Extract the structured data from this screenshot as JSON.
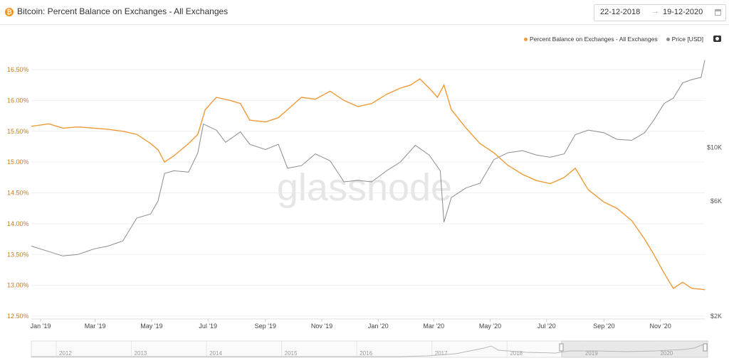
{
  "header": {
    "title": "Bitcoin: Percent Balance on Exchanges - All Exchanges",
    "date_from": "22-12-2018",
    "date_to": "19-12-2020",
    "arrow": "→"
  },
  "legend": {
    "series1": "Percent Balance on Exchanges - All Exchanges",
    "series2": "Price [USD]"
  },
  "watermark": "glassnode",
  "colors": {
    "balance": "#f09a37",
    "price": "#8c8c8c",
    "grid": "#efefef"
  },
  "chart_data": {
    "type": "line",
    "x_axis": {
      "ticks": [
        "Jan '19",
        "Mar '19",
        "May '19",
        "Jul '19",
        "Sep '19",
        "Nov '19",
        "Jan '20",
        "Mar '20",
        "May '20",
        "Jul '20",
        "Sep '20",
        "Nov '20"
      ],
      "range": [
        "2018-12-22",
        "2020-12-19"
      ]
    },
    "y_left": {
      "ticks": [
        "12.50%",
        "13.00%",
        "13.50%",
        "14.00%",
        "14.50%",
        "15.00%",
        "15.50%",
        "16.00%",
        "16.50%"
      ],
      "range": [
        12.5,
        16.5
      ]
    },
    "y_right": {
      "ticks": [
        "$2K",
        "$6K",
        "$10K"
      ],
      "scale": "log",
      "range": [
        2000,
        21000
      ]
    },
    "series": [
      {
        "name": "Percent Balance on Exchanges - All Exchanges",
        "axis": "left",
        "points": [
          [
            "2018-12-22",
            15.58
          ],
          [
            "2019-01-10",
            15.62
          ],
          [
            "2019-01-25",
            15.55
          ],
          [
            "2019-02-10",
            15.57
          ],
          [
            "2019-02-28",
            15.55
          ],
          [
            "2019-03-15",
            15.53
          ],
          [
            "2019-03-31",
            15.5
          ],
          [
            "2019-04-15",
            15.45
          ],
          [
            "2019-04-30",
            15.3
          ],
          [
            "2019-05-08",
            15.2
          ],
          [
            "2019-05-15",
            15.0
          ],
          [
            "2019-05-25",
            15.1
          ],
          [
            "2019-06-10",
            15.3
          ],
          [
            "2019-06-20",
            15.45
          ],
          [
            "2019-06-28",
            15.85
          ],
          [
            "2019-07-10",
            16.05
          ],
          [
            "2019-07-25",
            16.0
          ],
          [
            "2019-08-05",
            15.95
          ],
          [
            "2019-08-15",
            15.68
          ],
          [
            "2019-09-01",
            15.65
          ],
          [
            "2019-09-15",
            15.72
          ],
          [
            "2019-09-25",
            15.85
          ],
          [
            "2019-10-10",
            16.05
          ],
          [
            "2019-10-25",
            16.02
          ],
          [
            "2019-11-10",
            16.15
          ],
          [
            "2019-11-25",
            16.0
          ],
          [
            "2019-12-10",
            15.9
          ],
          [
            "2019-12-25",
            15.95
          ],
          [
            "2020-01-10",
            16.1
          ],
          [
            "2020-01-25",
            16.2
          ],
          [
            "2020-02-05",
            16.25
          ],
          [
            "2020-02-15",
            16.35
          ],
          [
            "2020-02-25",
            16.2
          ],
          [
            "2020-03-05",
            16.05
          ],
          [
            "2020-03-12",
            16.25
          ],
          [
            "2020-03-20",
            15.85
          ],
          [
            "2020-04-05",
            15.55
          ],
          [
            "2020-04-20",
            15.3
          ],
          [
            "2020-05-05",
            15.15
          ],
          [
            "2020-05-20",
            14.95
          ],
          [
            "2020-06-05",
            14.8
          ],
          [
            "2020-06-20",
            14.7
          ],
          [
            "2020-07-05",
            14.65
          ],
          [
            "2020-07-20",
            14.75
          ],
          [
            "2020-08-01",
            14.9
          ],
          [
            "2020-08-15",
            14.55
          ],
          [
            "2020-09-01",
            14.35
          ],
          [
            "2020-09-15",
            14.25
          ],
          [
            "2020-10-01",
            14.05
          ],
          [
            "2020-10-15",
            13.75
          ],
          [
            "2020-10-25",
            13.5
          ],
          [
            "2020-11-05",
            13.2
          ],
          [
            "2020-11-15",
            12.95
          ],
          [
            "2020-11-25",
            13.05
          ],
          [
            "2020-12-05",
            12.95
          ],
          [
            "2020-12-19",
            12.93
          ]
        ]
      },
      {
        "name": "Price [USD]",
        "axis": "right",
        "points": [
          [
            "2018-12-22",
            3900
          ],
          [
            "2019-01-10",
            3700
          ],
          [
            "2019-01-25",
            3550
          ],
          [
            "2019-02-10",
            3600
          ],
          [
            "2019-02-28",
            3800
          ],
          [
            "2019-03-15",
            3900
          ],
          [
            "2019-03-31",
            4100
          ],
          [
            "2019-04-15",
            5100
          ],
          [
            "2019-04-30",
            5300
          ],
          [
            "2019-05-08",
            6000
          ],
          [
            "2019-05-15",
            7800
          ],
          [
            "2019-05-25",
            8000
          ],
          [
            "2019-06-10",
            7900
          ],
          [
            "2019-06-20",
            9500
          ],
          [
            "2019-06-26",
            12500
          ],
          [
            "2019-07-10",
            11800
          ],
          [
            "2019-07-20",
            10500
          ],
          [
            "2019-08-05",
            11600
          ],
          [
            "2019-08-15",
            10300
          ],
          [
            "2019-09-01",
            9800
          ],
          [
            "2019-09-15",
            10300
          ],
          [
            "2019-09-25",
            8200
          ],
          [
            "2019-10-10",
            8400
          ],
          [
            "2019-10-25",
            9400
          ],
          [
            "2019-11-10",
            8800
          ],
          [
            "2019-11-25",
            7200
          ],
          [
            "2019-12-10",
            7300
          ],
          [
            "2019-12-25",
            7200
          ],
          [
            "2020-01-10",
            8000
          ],
          [
            "2020-01-25",
            8700
          ],
          [
            "2020-02-10",
            10200
          ],
          [
            "2020-02-25",
            9300
          ],
          [
            "2020-03-08",
            8000
          ],
          [
            "2020-03-12",
            4900
          ],
          [
            "2020-03-20",
            6200
          ],
          [
            "2020-04-05",
            6800
          ],
          [
            "2020-04-20",
            7100
          ],
          [
            "2020-05-05",
            8900
          ],
          [
            "2020-05-20",
            9500
          ],
          [
            "2020-06-05",
            9700
          ],
          [
            "2020-06-20",
            9300
          ],
          [
            "2020-07-05",
            9100
          ],
          [
            "2020-07-20",
            9400
          ],
          [
            "2020-08-01",
            11300
          ],
          [
            "2020-08-15",
            11800
          ],
          [
            "2020-09-01",
            11500
          ],
          [
            "2020-09-15",
            10800
          ],
          [
            "2020-10-01",
            10700
          ],
          [
            "2020-10-15",
            11500
          ],
          [
            "2020-10-25",
            13000
          ],
          [
            "2020-11-05",
            15200
          ],
          [
            "2020-11-15",
            16000
          ],
          [
            "2020-11-25",
            18500
          ],
          [
            "2020-12-05",
            19100
          ],
          [
            "2020-12-15",
            19500
          ],
          [
            "2020-12-19",
            23000
          ]
        ]
      }
    ]
  },
  "navigator": {
    "years": [
      "2012",
      "2013",
      "2014",
      "2015",
      "2016",
      "2017",
      "2018",
      "2019",
      "2020"
    ]
  }
}
